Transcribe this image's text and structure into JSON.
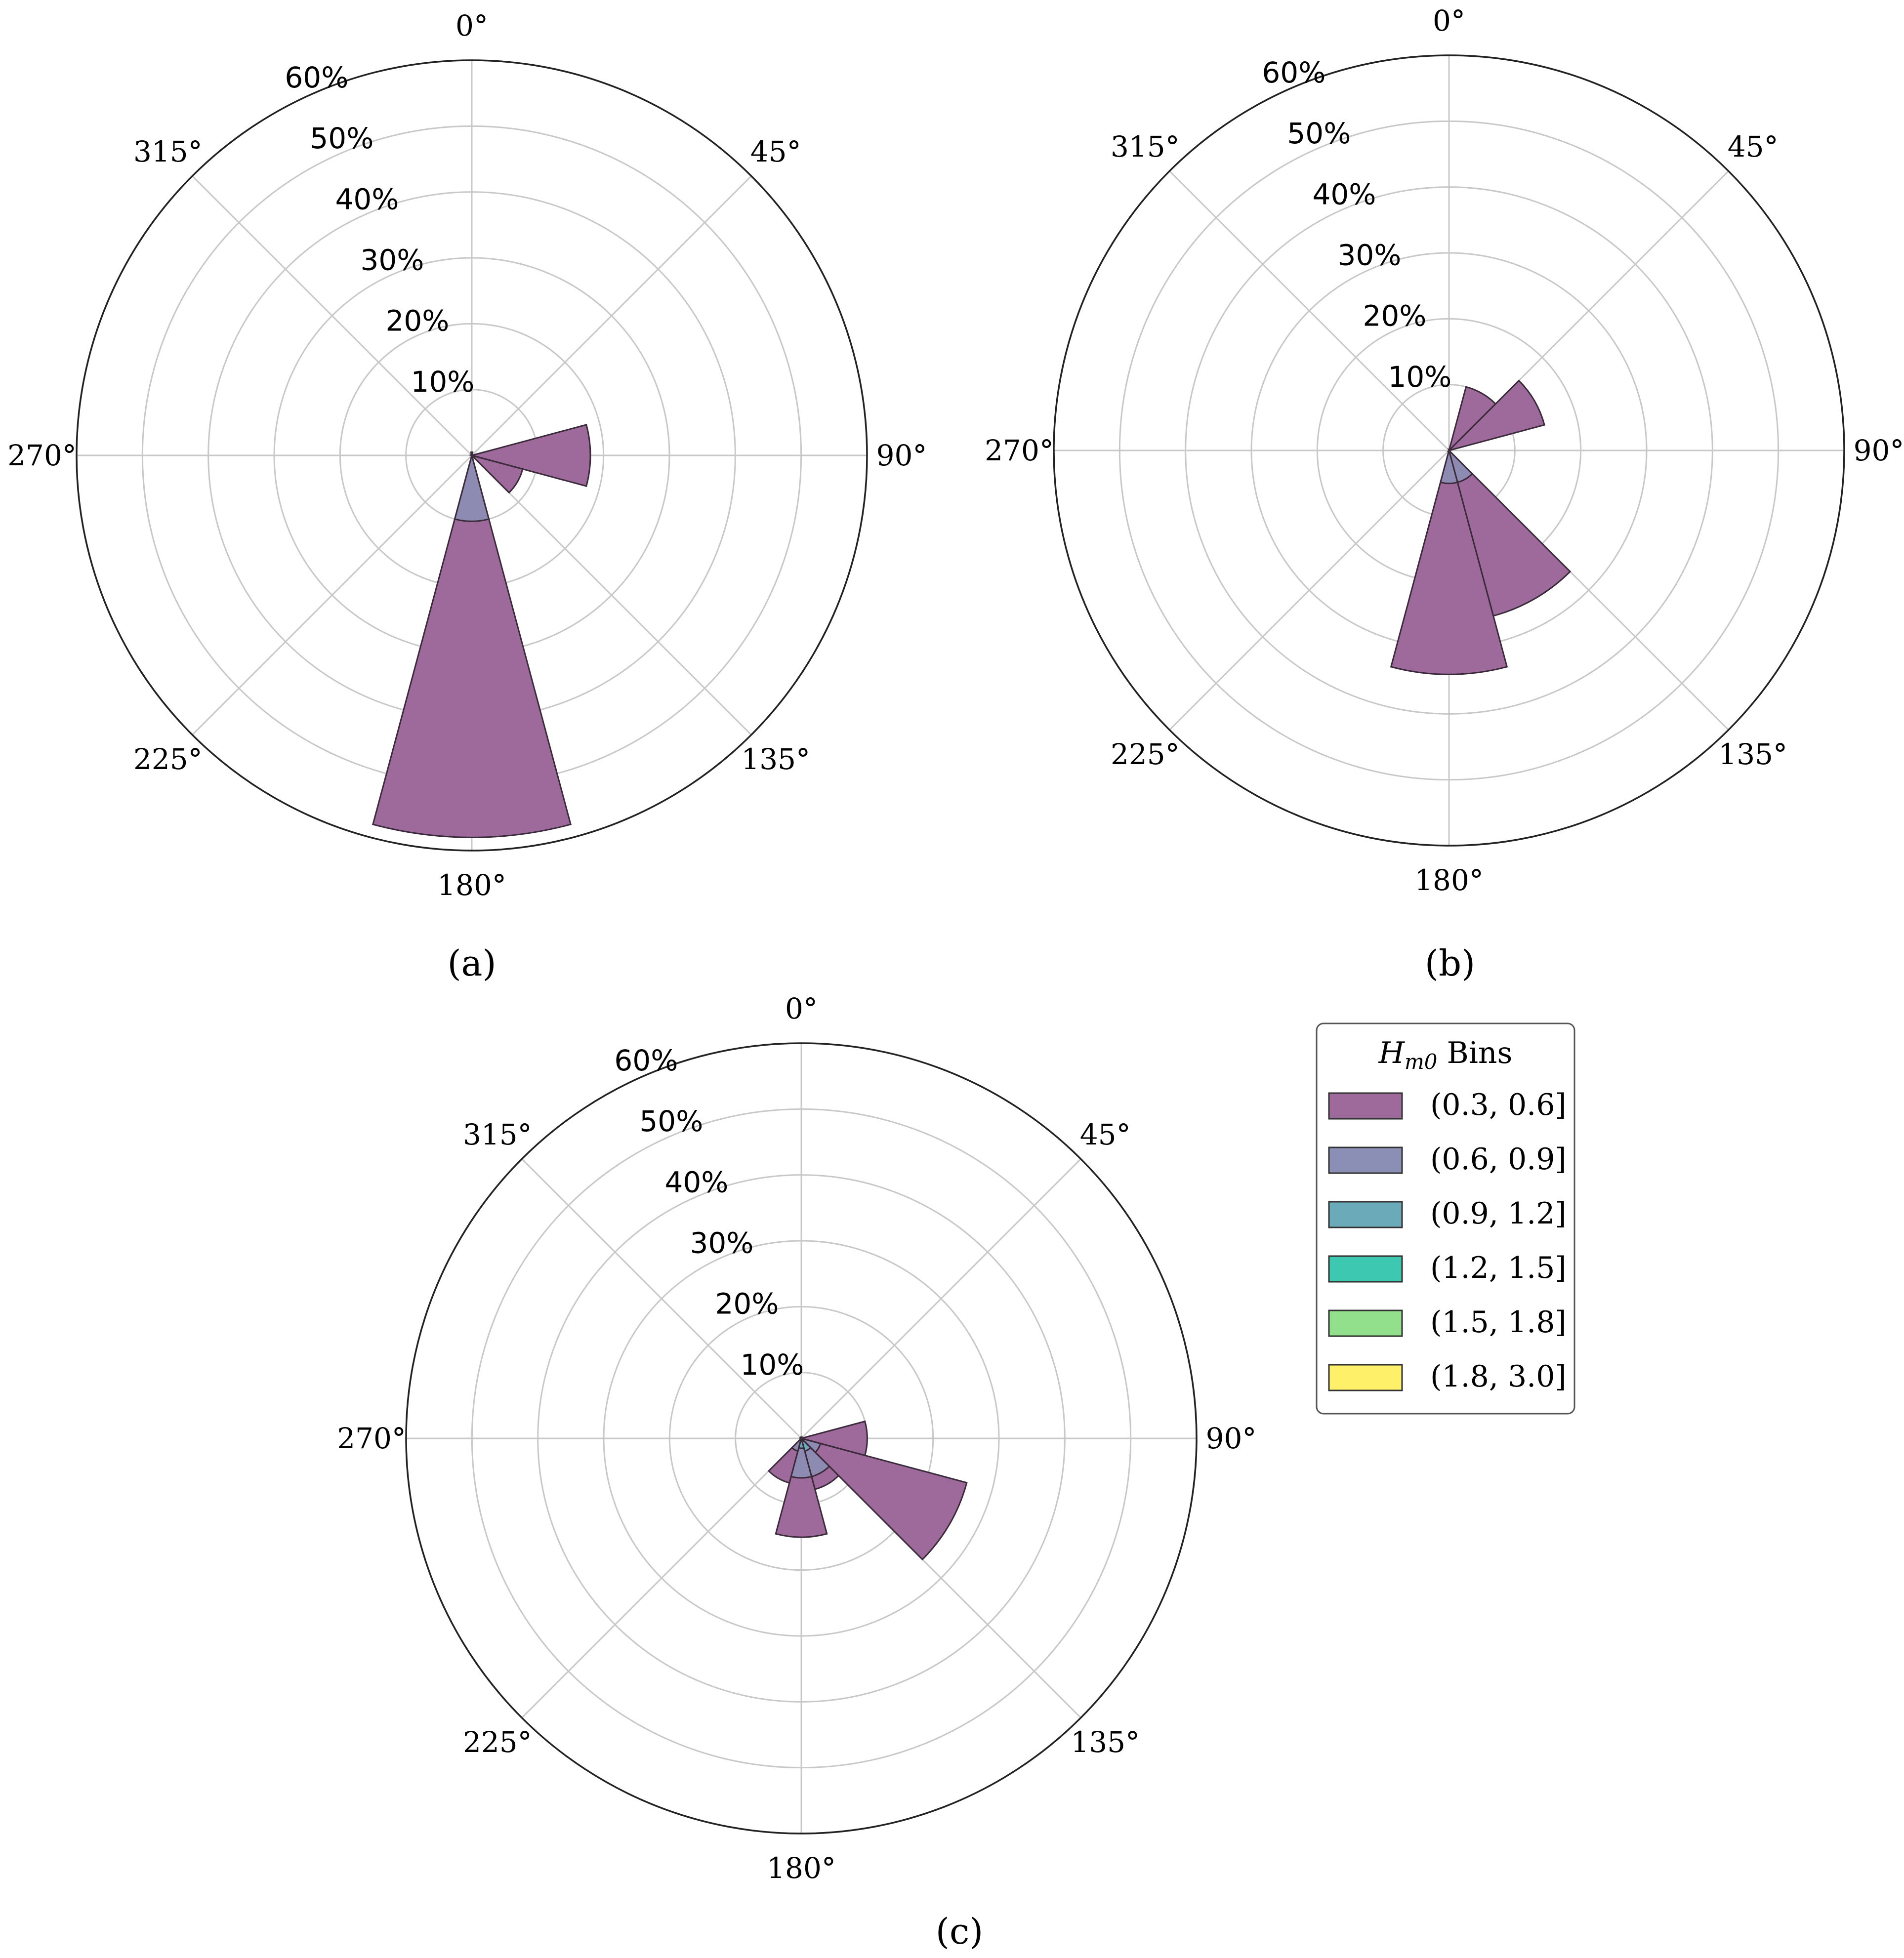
{
  "chart_data": [
    {
      "type": "polar-bar",
      "panel_label": "(a)",
      "theta_tick_labels": [
        "0°",
        "45°",
        "90°",
        "135°",
        "180°",
        "225°",
        "270°",
        "315°"
      ],
      "r_tick_labels": [
        "10%",
        "20%",
        "30%",
        "40%",
        "50%",
        "60%"
      ],
      "rlim": [
        0,
        60
      ],
      "direction": "clockwise",
      "theta_zero": "top",
      "bin_width_deg": 30,
      "series": [
        {
          "name": "(0.3, 0.6]",
          "sectors": [
            {
              "direction_deg": 0,
              "value": 0.5
            },
            {
              "direction_deg": 90,
              "value": 18
            },
            {
              "direction_deg": 120,
              "value": 8
            },
            {
              "direction_deg": 180,
              "value": 58
            }
          ]
        },
        {
          "name": "(0.6, 0.9]",
          "sectors": [
            {
              "direction_deg": 120,
              "value": 0.5
            },
            {
              "direction_deg": 180,
              "value": 10
            }
          ]
        }
      ]
    },
    {
      "type": "polar-bar",
      "panel_label": "(b)",
      "theta_tick_labels": [
        "0°",
        "45°",
        "90°",
        "135°",
        "180°",
        "225°",
        "270°",
        "315°"
      ],
      "r_tick_labels": [
        "10%",
        "20%",
        "30%",
        "40%",
        "50%",
        "60%"
      ],
      "rlim": [
        0,
        60
      ],
      "direction": "clockwise",
      "theta_zero": "top",
      "bin_width_deg": 30,
      "series": [
        {
          "name": "(0.3, 0.6]",
          "sectors": [
            {
              "direction_deg": 30,
              "value": 10
            },
            {
              "direction_deg": 60,
              "value": 15
            },
            {
              "direction_deg": 150,
              "value": 26
            },
            {
              "direction_deg": 180,
              "value": 34
            }
          ]
        },
        {
          "name": "(0.6, 0.9]",
          "sectors": [
            {
              "direction_deg": 150,
              "value": 5
            },
            {
              "direction_deg": 180,
              "value": 5
            }
          ]
        }
      ]
    },
    {
      "type": "polar-bar",
      "panel_label": "(c)",
      "theta_tick_labels": [
        "0°",
        "45°",
        "90°",
        "135°",
        "180°",
        "225°",
        "270°",
        "315°"
      ],
      "r_tick_labels": [
        "10%",
        "20%",
        "30%",
        "40%",
        "50%",
        "60%"
      ],
      "rlim": [
        0,
        60
      ],
      "direction": "clockwise",
      "theta_zero": "top",
      "bin_width_deg": 30,
      "series": [
        {
          "name": "(0.3, 0.6]",
          "sectors": [
            {
              "direction_deg": 90,
              "value": 10
            },
            {
              "direction_deg": 120,
              "value": 26
            },
            {
              "direction_deg": 150,
              "value": 8
            },
            {
              "direction_deg": 180,
              "value": 15
            },
            {
              "direction_deg": 210,
              "value": 7
            }
          ]
        },
        {
          "name": "(0.6, 0.9]",
          "sectors": [
            {
              "direction_deg": 120,
              "value": 3
            },
            {
              "direction_deg": 150,
              "value": 6
            },
            {
              "direction_deg": 180,
              "value": 6
            },
            {
              "direction_deg": 210,
              "value": 2
            }
          ]
        },
        {
          "name": "(0.9, 1.2]",
          "sectors": [
            {
              "direction_deg": 150,
              "value": 2
            },
            {
              "direction_deg": 180,
              "value": 1.5
            }
          ]
        },
        {
          "name": "(1.2, 1.5]",
          "sectors": [
            {
              "direction_deg": 150,
              "value": 0.5
            }
          ]
        }
      ]
    }
  ],
  "legend": {
    "title_main": "H",
    "title_sub": "m0",
    "title_rest": " Bins",
    "placement": "right of panel (c)",
    "items": [
      {
        "label": "(0.3, 0.6]",
        "color": "#9e6a9c"
      },
      {
        "label": "(0.6, 0.9]",
        "color": "#8c8fb5"
      },
      {
        "label": "(0.9, 1.2]",
        "color": "#6aaab9"
      },
      {
        "label": "(1.2, 1.5]",
        "color": "#3dc9b1"
      },
      {
        "label": "(1.5, 1.8]",
        "color": "#92e08c"
      },
      {
        "label": "(1.8, 3.0]",
        "color": "#fff06a"
      }
    ]
  },
  "colors": {
    "bar_stroke": "#3a2a3a",
    "grid": "#c8c8c8",
    "outer_circle": "#222222"
  }
}
